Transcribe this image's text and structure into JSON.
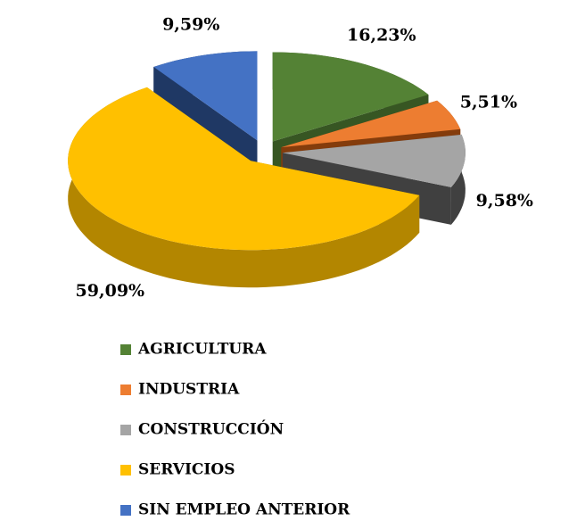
{
  "chart_data": {
    "type": "pie",
    "categories": [
      "AGRICULTURA",
      "INDUSTRIA",
      "CONSTRUCCIÓN",
      "SERVICIOS",
      "SIN EMPLEO ANTERIOR"
    ],
    "values": [
      16.23,
      5.51,
      9.58,
      59.09,
      9.59
    ],
    "value_labels": [
      "16,23%",
      "5,51%",
      "9,58%",
      "59,09%",
      "9,59%"
    ],
    "colors": [
      "#548235",
      "#ed7d31",
      "#a5a5a5",
      "#ffc000",
      "#4472c4"
    ],
    "side_colors": [
      "#375623",
      "#843c0c",
      "#404040",
      "#b38600",
      "#1f3864"
    ],
    "legend": "bottom"
  }
}
